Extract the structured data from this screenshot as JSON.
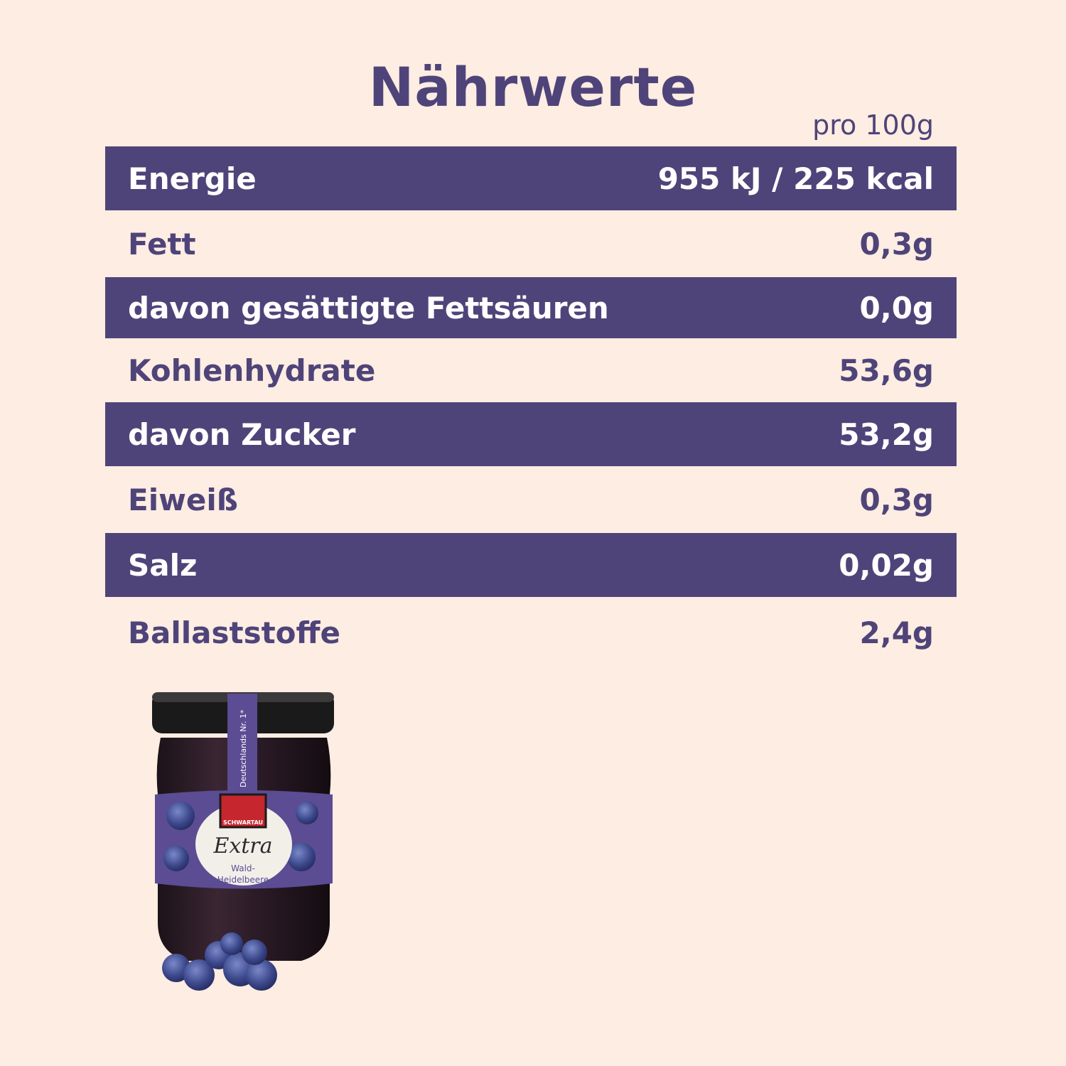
{
  "title": "Nährwerte",
  "per_label": "pro 100g",
  "rows": [
    {
      "label": "Energie",
      "value": "955 kJ / 225 kcal",
      "height": 90
    },
    {
      "label": "Fett",
      "value": "0,3g",
      "height": 94
    },
    {
      "label": "davon gesättigte Fettsäuren",
      "value": "0,0g",
      "height": 86
    },
    {
      "label": "Kohlenhydrate",
      "value": "53,6g",
      "height": 90
    },
    {
      "label": "davon Zucker",
      "value": "53,2g",
      "height": 90
    },
    {
      "label": "Eiweiß",
      "value": "0,3g",
      "height": 94
    },
    {
      "label": "Salz",
      "value": "0,02g",
      "height": 90
    },
    {
      "label": "Ballaststoffe",
      "value": "2,4g",
      "height": 100
    }
  ],
  "product": {
    "brand": "SCHWARTAU",
    "line": "Extra",
    "variety_line1": "Wald-",
    "variety_line2": "Heidelbeere",
    "side_text": "Deutschlands Nr. 1*"
  },
  "colors": {
    "background": "#fdede2",
    "accent": "#4f4479",
    "row_text_on_dark": "#ffffff"
  }
}
